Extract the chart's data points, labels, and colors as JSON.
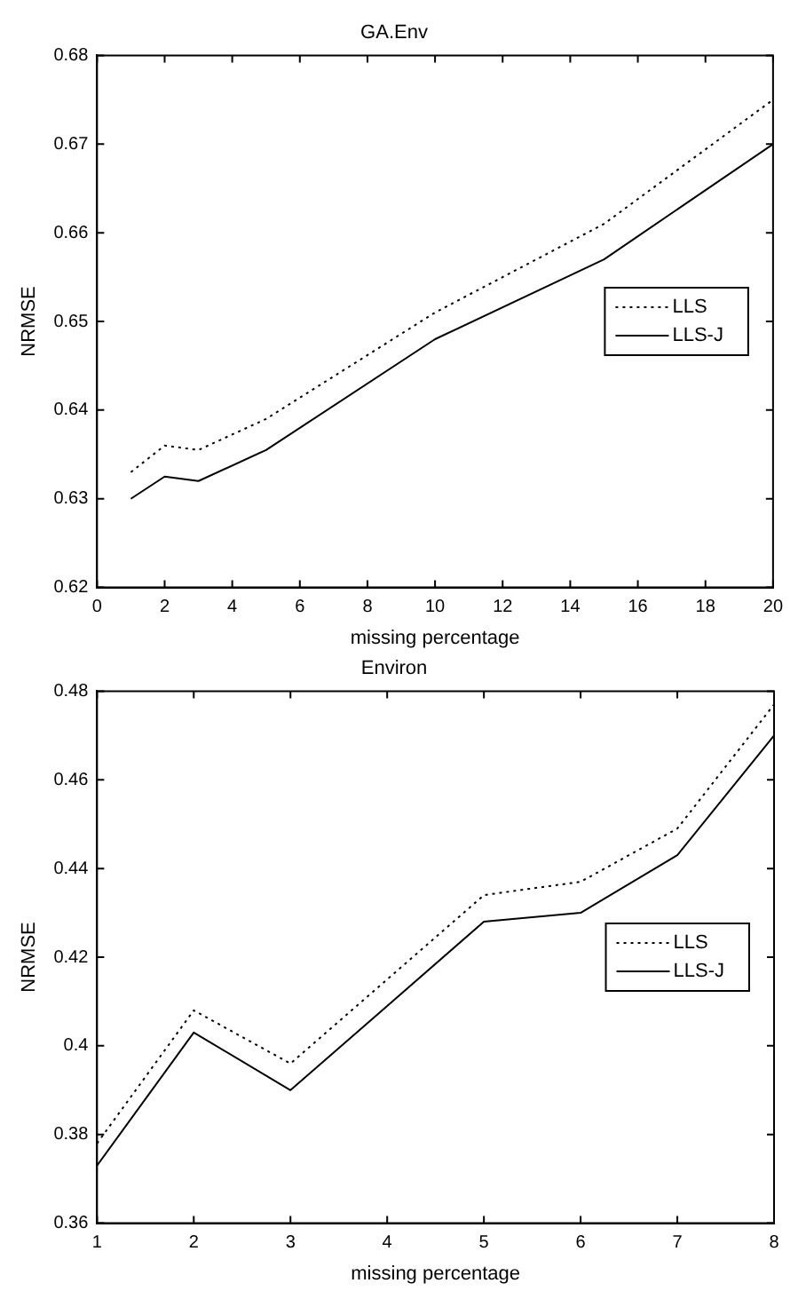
{
  "chart_data": [
    {
      "type": "line",
      "title": "GA.Env",
      "xlabel": "missing percentage",
      "ylabel": "NRMSE",
      "x": [
        1,
        2,
        3,
        5,
        10,
        15,
        20
      ],
      "xlim": [
        0,
        20
      ],
      "xticks": [
        0,
        2,
        4,
        6,
        8,
        10,
        12,
        14,
        16,
        18,
        20
      ],
      "ylim": [
        0.62,
        0.68
      ],
      "yticks": [
        0.62,
        0.63,
        0.64,
        0.65,
        0.66,
        0.67,
        0.68
      ],
      "grid": false,
      "legend": "right",
      "marker": "none",
      "series": [
        {
          "name": "LLS",
          "color": "#000000",
          "line_style": "dotted",
          "values": [
            0.633,
            0.636,
            0.6355,
            0.639,
            0.651,
            0.661,
            0.675
          ]
        },
        {
          "name": "LLS-J",
          "color": "#000000",
          "line_style": "solid",
          "values": [
            0.63,
            0.6325,
            0.632,
            0.6355,
            0.648,
            0.657,
            0.67
          ]
        }
      ]
    },
    {
      "type": "line",
      "title": "Environ",
      "xlabel": "missing percentage",
      "ylabel": "NRMSE",
      "x": [
        1,
        2,
        3,
        4,
        5,
        6,
        7,
        8
      ],
      "xlim": [
        1,
        8
      ],
      "xticks": [
        1,
        2,
        3,
        4,
        5,
        6,
        7,
        8
      ],
      "ylim": [
        0.36,
        0.48
      ],
      "yticks": [
        0.36,
        0.38,
        0.4,
        0.42,
        0.44,
        0.46,
        0.48
      ],
      "grid": false,
      "legend": "right",
      "marker": "none",
      "series": [
        {
          "name": "LLS",
          "color": "#000000",
          "line_style": "dotted",
          "values": [
            0.378,
            0.408,
            0.396,
            0.415,
            0.434,
            0.437,
            0.449,
            0.477
          ]
        },
        {
          "name": "LLS-J",
          "color": "#000000",
          "line_style": "solid",
          "values": [
            0.373,
            0.403,
            0.39,
            0.409,
            0.428,
            0.43,
            0.443,
            0.47
          ]
        }
      ]
    }
  ]
}
